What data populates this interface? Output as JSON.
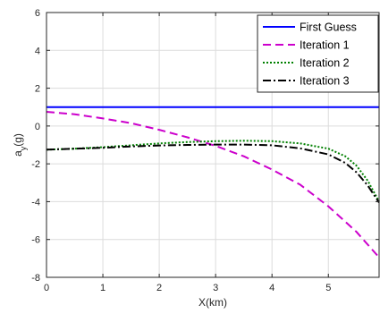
{
  "chart_data": {
    "type": "line",
    "xlabel": "X(km)",
    "ylabel_main": "a",
    "ylabel_sub": "y",
    "ylabel_unit": "(g)",
    "xlim": [
      0,
      5.9
    ],
    "ylim": [
      -8,
      6
    ],
    "xticks": [
      0,
      1,
      2,
      3,
      4,
      5
    ],
    "yticks": [
      -8,
      -6,
      -4,
      -2,
      0,
      2,
      4,
      6
    ],
    "grid": true,
    "legend_position": "top-right",
    "series": [
      {
        "name": "First Guess",
        "color": "#0000ff",
        "dash": "solid",
        "x": [
          0,
          5.9
        ],
        "y": [
          1.0,
          1.0
        ]
      },
      {
        "name": "Iteration 1",
        "color": "#cc00cc",
        "dash": "dashed",
        "x": [
          0,
          0.5,
          1.0,
          1.5,
          2.0,
          2.5,
          3.0,
          3.5,
          4.0,
          4.5,
          5.0,
          5.5,
          5.9
        ],
        "y": [
          0.75,
          0.62,
          0.4,
          0.15,
          -0.2,
          -0.6,
          -1.05,
          -1.6,
          -2.3,
          -3.1,
          -4.25,
          -5.6,
          -6.95
        ]
      },
      {
        "name": "Iteration 2",
        "color": "#008000",
        "dash": "dotted",
        "x": [
          0,
          0.5,
          1.0,
          1.5,
          2.0,
          2.5,
          3.0,
          3.5,
          4.0,
          4.5,
          5.0,
          5.3,
          5.5,
          5.7,
          5.9
        ],
        "y": [
          -1.25,
          -1.2,
          -1.12,
          -1.02,
          -0.92,
          -0.85,
          -0.8,
          -0.78,
          -0.8,
          -0.92,
          -1.2,
          -1.6,
          -2.1,
          -2.9,
          -4.0
        ]
      },
      {
        "name": "Iteration 3",
        "color": "#000000",
        "dash": "dashdot",
        "x": [
          0,
          0.5,
          1.0,
          1.5,
          2.0,
          2.5,
          3.0,
          3.5,
          4.0,
          4.5,
          5.0,
          5.3,
          5.5,
          5.7,
          5.9
        ],
        "y": [
          -1.25,
          -1.2,
          -1.15,
          -1.08,
          -1.03,
          -1.0,
          -0.98,
          -0.98,
          -1.02,
          -1.18,
          -1.5,
          -1.95,
          -2.45,
          -3.15,
          -4.05
        ]
      }
    ]
  }
}
